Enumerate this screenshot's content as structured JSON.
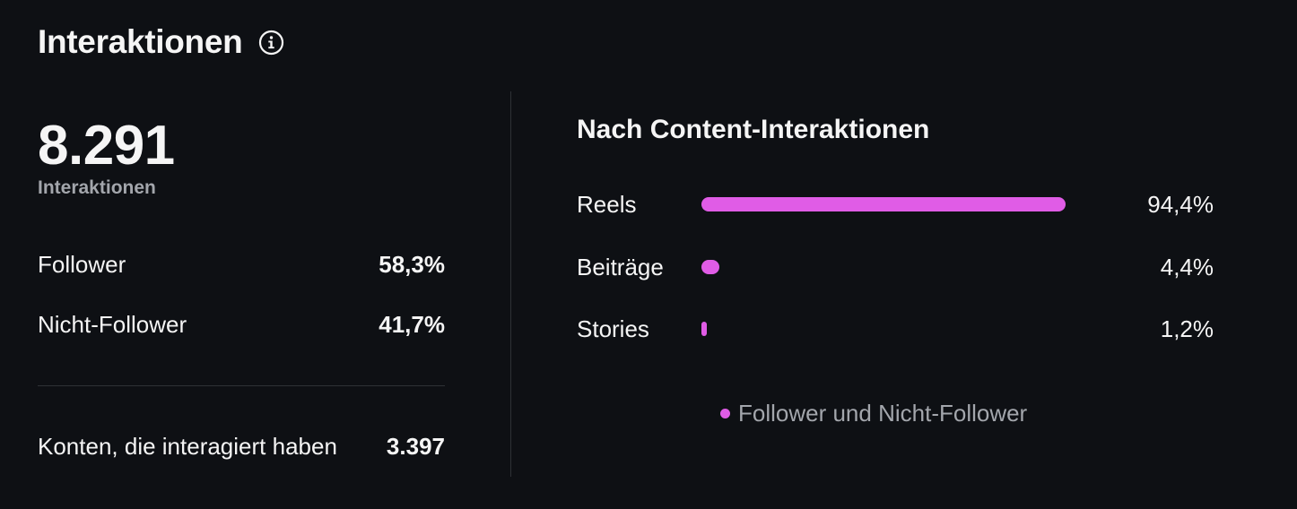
{
  "header": {
    "title": "Interaktionen",
    "info_icon": "info-icon"
  },
  "summary": {
    "total_value": "8.291",
    "total_label": "Interaktionen",
    "rows": [
      {
        "label": "Follower",
        "value": "58,3%"
      },
      {
        "label": "Nicht-Follower",
        "value": "41,7%"
      }
    ],
    "accounts": {
      "label": "Konten, die interagiert haben",
      "value": "3.397"
    }
  },
  "content": {
    "title": "Nach Content-Interaktionen",
    "bars": [
      {
        "label": "Reels",
        "value": "94,4%",
        "fraction": 0.944
      },
      {
        "label": "Beiträge",
        "value": "4,4%",
        "fraction": 0.044
      },
      {
        "label": "Stories",
        "value": "1,2%",
        "fraction": 0.012
      }
    ],
    "legend": "Follower und Nicht-Follower"
  },
  "colors": {
    "background": "#0e1014",
    "accent": "#e05ce6",
    "muted_text": "#a3a6ac",
    "divider": "#2e3136"
  }
}
